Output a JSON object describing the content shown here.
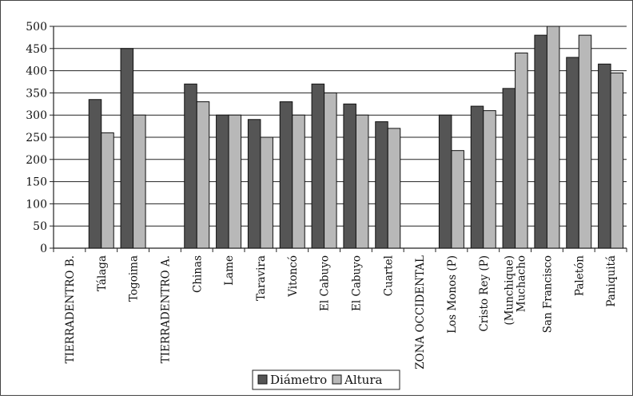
{
  "chart_data": {
    "type": "bar",
    "categories": [
      "TIERRADENTRO B.",
      "Tálaga",
      "Togoima",
      "TIERRADENTRO A.",
      "Chinas",
      "Lame",
      "Taravira",
      "Vitoncó",
      "El Cabuyo",
      "El Cabuyo",
      "Cuartel",
      "ZONA OCCIDENTAL",
      "Los Monos (P)",
      "Cristo Rey (P)",
      "(Munchique) Muchacho",
      "San Francisco",
      "Paletón",
      "Paniquitá"
    ],
    "series": [
      {
        "name": "Diámetro",
        "color": "#555555",
        "values": [
          null,
          335,
          450,
          null,
          370,
          300,
          290,
          330,
          370,
          325,
          285,
          null,
          300,
          320,
          360,
          480,
          430,
          415
        ]
      },
      {
        "name": "Altura",
        "color": "#b8b8b8",
        "values": [
          null,
          260,
          300,
          null,
          330,
          300,
          250,
          300,
          350,
          300,
          270,
          null,
          220,
          310,
          440,
          500,
          480,
          395
        ]
      }
    ],
    "ylim": [
      0,
      500
    ],
    "yticks": [
      0,
      50,
      100,
      150,
      200,
      250,
      300,
      350,
      400,
      450,
      500
    ],
    "grid": true,
    "legend_position": "bottom-center",
    "title": "",
    "xlabel": "",
    "ylabel": ""
  }
}
